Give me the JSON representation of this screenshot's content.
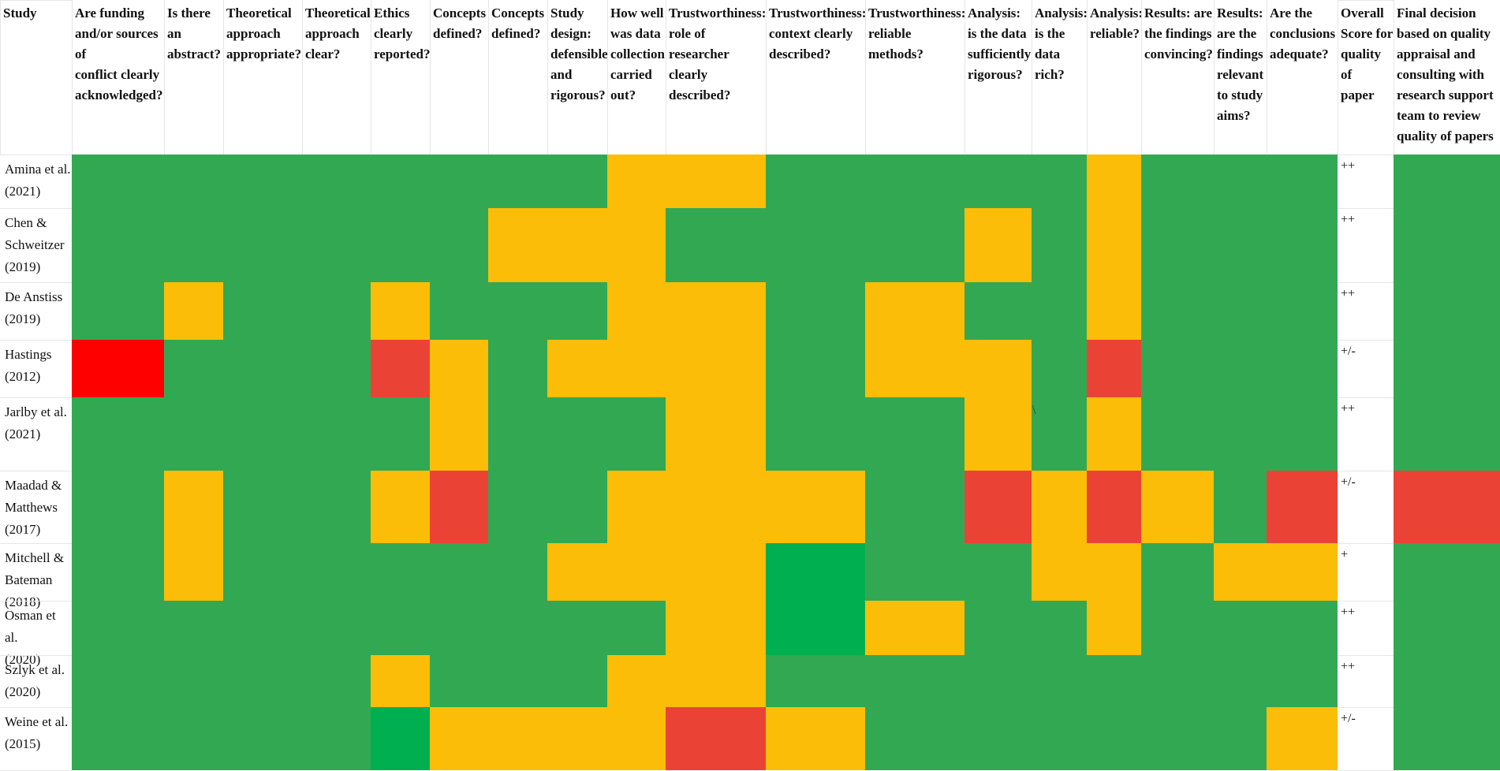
{
  "colors": {
    "green": "#33a852",
    "bright_green": "#00b050",
    "yellow": "#fbbd08",
    "red": "#ea4335",
    "pure_red": "#ff0000",
    "white": "#ffffff"
  },
  "table": {
    "headers": [
      "Study",
      "Are funding\nand/or sources\nof\nconflict clearly\nacknowledged?",
      "Is there\nan\nabstract?",
      "Theoretical\napproach\nappropriate?",
      "Theoretical\napproach\nclear?",
      "Ethics\nclearly\nreported?",
      "Concepts\ndefined?",
      "Concepts\ndefined?",
      "Study\ndesign:\ndefensible\nand\nrigorous?",
      "How well\nwas data\ncollection\ncarried\nout?",
      "Trustworthiness:\nrole of\nresearcher\nclearly\ndescribed?",
      "Trustworthiness:\ncontext clearly\ndescribed?",
      "Trustworthiness:\nreliable\nmethods?",
      "Analysis:\nis the data\nsufficiently\nrigorous?",
      "Analysis:\nis the\ndata\nrich?",
      "Analysis:\nreliable?",
      "Results: are\nthe findings\nconvincing?",
      "Results:\nare the\nfindings\nrelevant\nto study\naims?",
      "Are the\nconclusions\nadequate?",
      "Overall\nScore for\nquality of\npaper",
      "Final decision\nbased on quality\nappraisal and\nconsulting with\nresearch support\nteam to review\nquality of papers"
    ],
    "rows": [
      {
        "study": "Amina et al.\n(2021)",
        "cells": [
          "G",
          "G",
          "G",
          "G",
          "G",
          "G",
          "G",
          "G",
          "Y",
          "Y",
          "G",
          "G",
          "G",
          "G",
          "Y",
          "G",
          "G",
          "G"
        ],
        "score": "++",
        "decision": "G"
      },
      {
        "study": "Chen &\nSchweitzer\n(2019)",
        "cells": [
          "G",
          "G",
          "G",
          "G",
          "G",
          "G",
          "Y",
          "Y",
          "Y",
          "G",
          "G",
          "G",
          "Y",
          "G",
          "Y",
          "G",
          "G",
          "G"
        ],
        "score": "++",
        "decision": "G"
      },
      {
        "study": "De Anstiss\n(2019)",
        "cells": [
          "G",
          "Y",
          "G",
          "G",
          "Y",
          "G",
          "G",
          "G",
          "Y",
          "Y",
          "G",
          "Y",
          "G",
          "G",
          "Y",
          "G",
          "G",
          "G"
        ],
        "score": "++",
        "decision": "G"
      },
      {
        "study": "Hastings\n(2012)",
        "cells": [
          "P",
          "G",
          "G",
          "G",
          "R",
          "Y",
          "G",
          "Y",
          "Y",
          "Y",
          "G",
          "Y",
          "Y",
          "G",
          "R",
          "G",
          "G",
          "G"
        ],
        "score": "+/-",
        "decision": "G"
      },
      {
        "study": "Jarlby et al.\n(2021)",
        "cells": [
          "G",
          "G",
          "G",
          "G",
          "G",
          "Y",
          "G",
          "G",
          "G",
          "Y",
          "G",
          "G",
          "Y",
          "G",
          "Y",
          "G",
          "G",
          "G"
        ],
        "score": "++",
        "decision": "G"
      },
      {
        "study": "Maadad &\nMatthews\n(2017)",
        "cells": [
          "G",
          "Y",
          "G",
          "G",
          "Y",
          "R",
          "G",
          "G",
          "Y",
          "Y",
          "Y",
          "G",
          "R",
          "Y",
          "R",
          "Y",
          "G",
          "R"
        ],
        "score": "+/-",
        "decision": "R"
      },
      {
        "study": "Mitchell &\nBateman\n(2018)",
        "cells": [
          "G",
          "Y",
          "G",
          "G",
          "G",
          "G",
          "G",
          "Y",
          "Y",
          "Y",
          "B",
          "G",
          "G",
          "Y",
          "Y",
          "G",
          "Y",
          "Y"
        ],
        "score": "+",
        "decision": "G"
      },
      {
        "study": "Osman et al.\n(2020)",
        "cells": [
          "G",
          "G",
          "G",
          "G",
          "G",
          "G",
          "G",
          "G",
          "G",
          "Y",
          "B",
          "Y",
          "G",
          "G",
          "Y",
          "G",
          "G",
          "G"
        ],
        "score": "++",
        "decision": "G"
      },
      {
        "study": "Szlyk et al.\n(2020)",
        "cells": [
          "G",
          "G",
          "G",
          "G",
          "Y",
          "G",
          "G",
          "G",
          "Y",
          "Y",
          "G",
          "G",
          "G",
          "G",
          "G",
          "G",
          "G",
          "G"
        ],
        "score": "++",
        "decision": "G"
      },
      {
        "study": "Weine et al.\n(2015)",
        "cells": [
          "G",
          "G",
          "G",
          "G",
          "B",
          "Y",
          "Y",
          "Y",
          "Y",
          "R",
          "Y",
          "G",
          "G",
          "G",
          "G",
          "G",
          "G",
          "Y"
        ],
        "score": "+/-",
        "decision": "G"
      }
    ]
  },
  "stray_mark": "\\"
}
